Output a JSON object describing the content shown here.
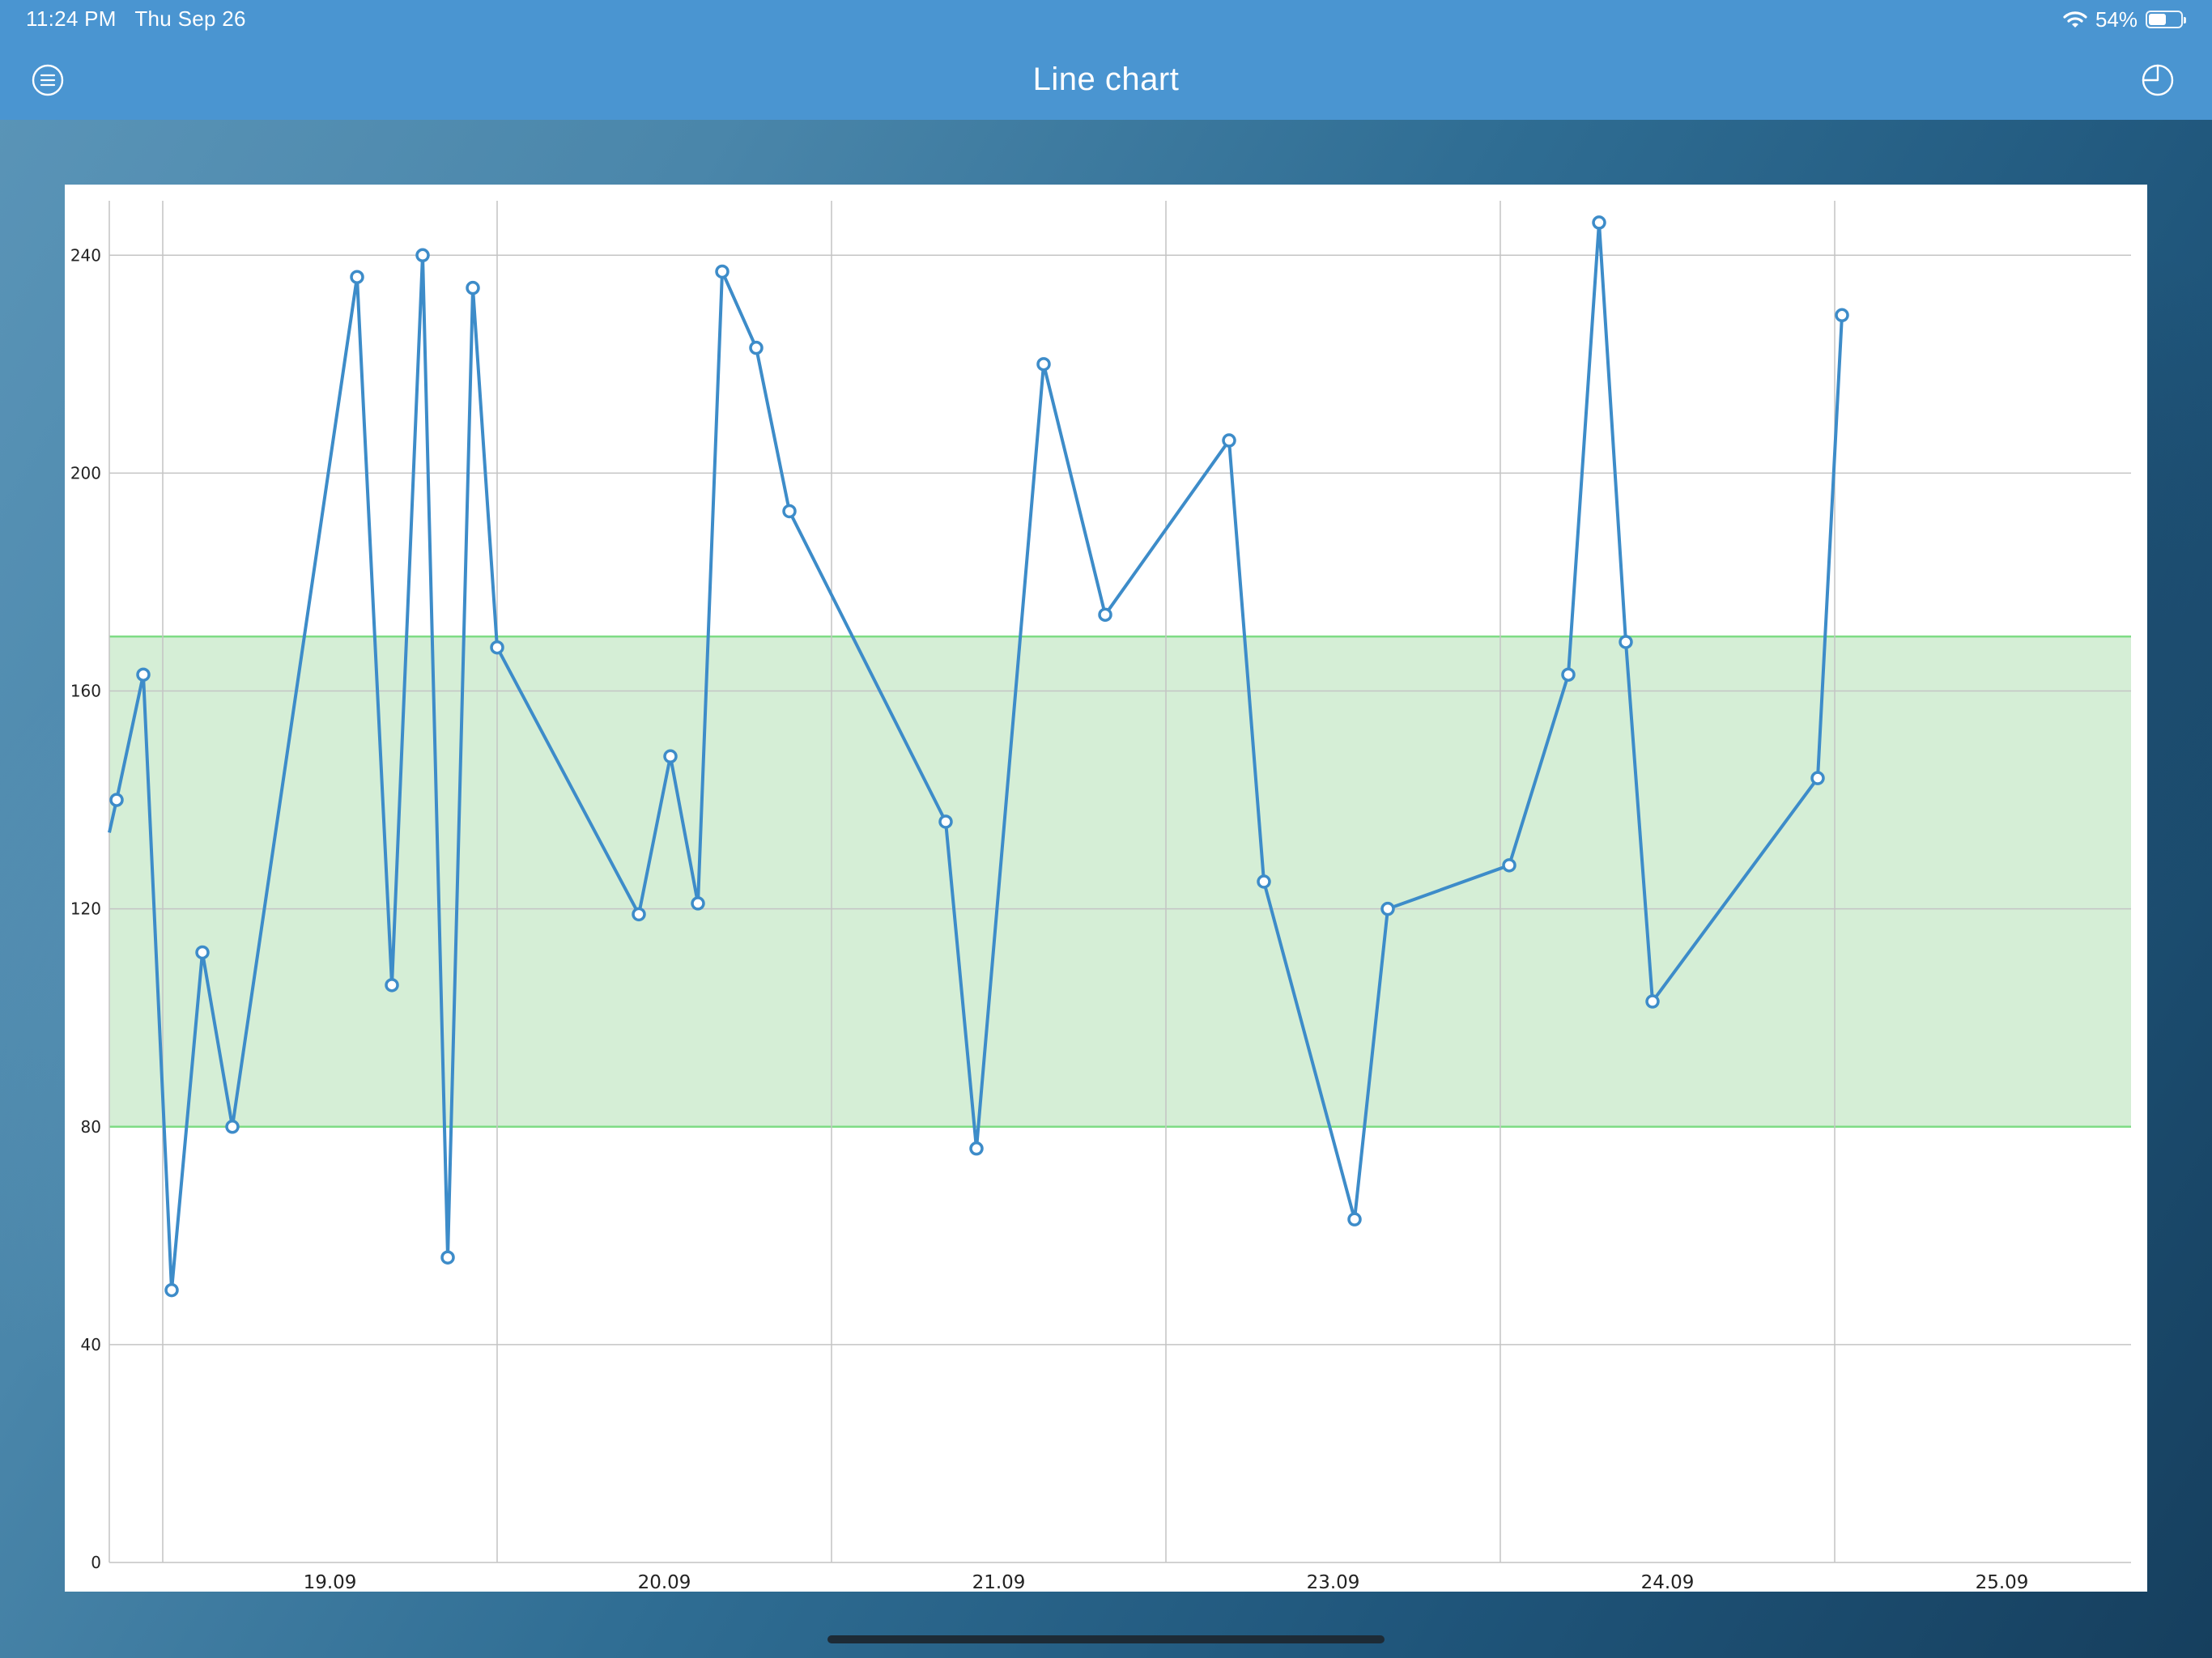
{
  "status_bar": {
    "time": "11:24 PM",
    "date": "Thu Sep 26",
    "battery": "54%",
    "battery_level": 0.54
  },
  "nav": {
    "title": "Line chart",
    "left_icon": "menu-icon",
    "right_icon": "pie-chart-icon"
  },
  "colors": {
    "bar": "#4a95d1",
    "line": "#3d8cc9",
    "band_fill": "#d5eed6",
    "band_edge": "#7fdc85"
  },
  "chart_data": {
    "type": "line",
    "x_tick_labels": [
      "19.09",
      "20.09",
      "21.09",
      "23.09",
      "24.09",
      "25.09"
    ],
    "y_ticks": [
      0,
      40,
      80,
      120,
      160,
      200,
      240
    ],
    "ylim": [
      0,
      250
    ],
    "grid": true,
    "band": {
      "from": 80,
      "to": 170
    },
    "series": [
      {
        "values": [
          134,
          140,
          163,
          50,
          112,
          80,
          236,
          106,
          240,
          56,
          234,
          168,
          119,
          148,
          121,
          237,
          223,
          193,
          136,
          76,
          220,
          174,
          206,
          125,
          63,
          120,
          128,
          163,
          246,
          169,
          103,
          144,
          229
        ]
      }
    ]
  }
}
